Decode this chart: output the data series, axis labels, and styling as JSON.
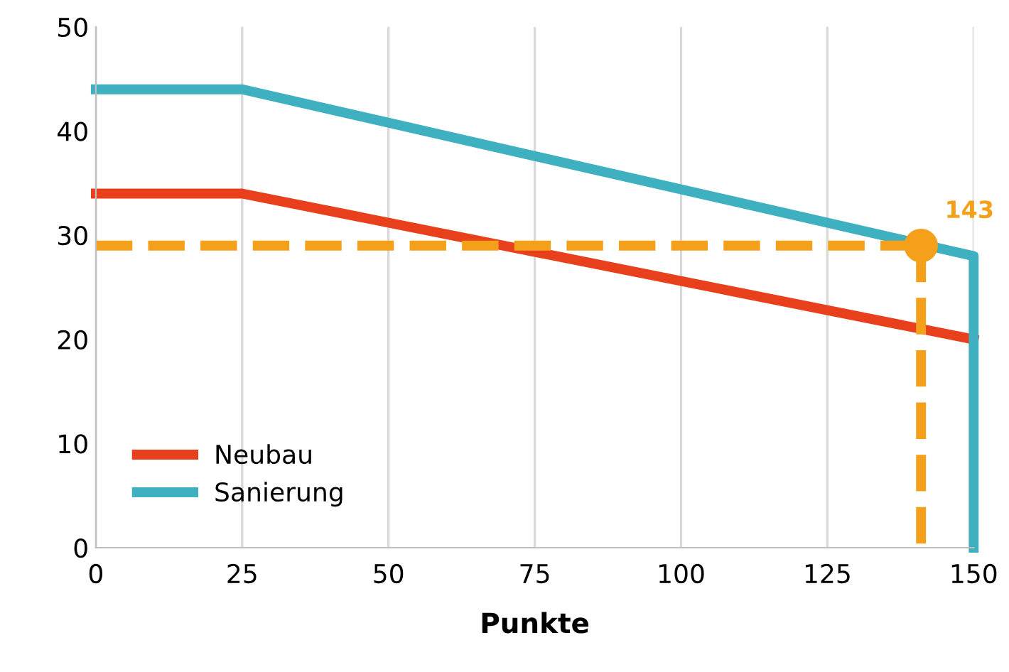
{
  "chart_data": {
    "type": "line",
    "xlabel": "Punkte",
    "xlim": [
      0,
      150
    ],
    "xticks": [
      0,
      25,
      50,
      75,
      100,
      125,
      150
    ],
    "ylim": [
      0,
      50
    ],
    "yticks": [
      0,
      10,
      20,
      30,
      40,
      50
    ],
    "grid": "x",
    "legend": "bottom left",
    "series": [
      {
        "name": "Neubau",
        "color": "#e8401c",
        "x": [
          0,
          25,
          150
        ],
        "values": [
          34,
          34,
          20
        ]
      },
      {
        "name": "Sanierung",
        "color": "#3fb0c0",
        "x": [
          0,
          25,
          150,
          150
        ],
        "values": [
          44,
          44,
          28,
          0
        ]
      },
      {
        "color": "#f5a01a",
        "line_style": "dashed",
        "x": [
          0,
          141
        ],
        "values": [
          29,
          29
        ]
      },
      {
        "color": "#f5a01a",
        "line_style": "dashed",
        "x": [
          141,
          141
        ],
        "values": [
          29,
          0
        ]
      },
      {
        "type": "scatter",
        "color": "#f5a01a",
        "marker": "circle",
        "x": [
          141
        ],
        "values": [
          29
        ]
      }
    ],
    "annotations": [
      {
        "text": "143",
        "x": 141,
        "y": 29
      }
    ]
  }
}
